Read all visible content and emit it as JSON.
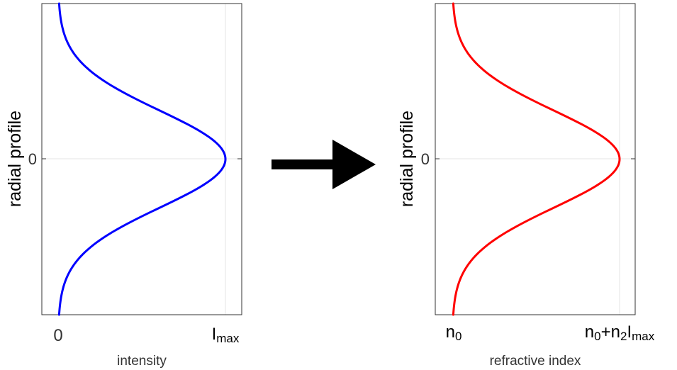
{
  "chart_data": [
    {
      "type": "line",
      "orientation": "profile-vertical",
      "title": "",
      "xlabel": "intensity",
      "ylabel": "radial profile",
      "x_ticks": [
        {
          "label": "0",
          "value": 0
        },
        {
          "label_base": "I",
          "label_sub": "max",
          "value": 1
        }
      ],
      "y_ticks": [
        {
          "label": "0",
          "value": 0
        }
      ],
      "xlim": [
        -0.1,
        1.1
      ],
      "ylim": [
        -3.2,
        3.2
      ],
      "grid": true,
      "series": [
        {
          "color": "#0000ff",
          "profile": "gaussian",
          "baseline": 0,
          "peak": 1,
          "sigma": 1,
          "y": [
            -3.2,
            -3.0,
            -2.8,
            -2.6,
            -2.4,
            -2.2,
            -2.0,
            -1.8,
            -1.6,
            -1.4,
            -1.2,
            -1.0,
            -0.8,
            -0.6,
            -0.4,
            -0.2,
            0.0,
            0.2,
            0.4,
            0.6,
            0.8,
            1.0,
            1.2,
            1.4,
            1.6,
            1.8,
            2.0,
            2.2,
            2.4,
            2.6,
            2.8,
            3.0,
            3.2
          ],
          "x": [
            0.006,
            0.011,
            0.02,
            0.034,
            0.056,
            0.089,
            0.135,
            0.198,
            0.278,
            0.375,
            0.487,
            0.607,
            0.726,
            0.835,
            0.923,
            0.98,
            1.0,
            0.98,
            0.923,
            0.835,
            0.726,
            0.607,
            0.487,
            0.375,
            0.278,
            0.198,
            0.135,
            0.089,
            0.056,
            0.034,
            0.02,
            0.011,
            0.006
          ]
        }
      ]
    },
    {
      "type": "line",
      "orientation": "profile-vertical",
      "title": "",
      "xlabel": "refractive index",
      "ylabel": "radial profile",
      "x_ticks": [
        {
          "label_base": "n",
          "label_sub": "0",
          "value": 0
        },
        {
          "label_parts": [
            {
              "text": "n",
              "sub": false
            },
            {
              "text": "0",
              "sub": true
            },
            {
              "text": "+n",
              "sub": false
            },
            {
              "text": "2",
              "sub": true
            },
            {
              "text": "I",
              "sub": false
            },
            {
              "text": "max",
              "sub": true
            }
          ],
          "value": 1
        }
      ],
      "y_ticks": [
        {
          "label": "0",
          "value": 0
        }
      ],
      "xlim": [
        -0.1,
        1.1
      ],
      "ylim": [
        -3.2,
        3.2
      ],
      "grid": true,
      "series": [
        {
          "color": "#ff0000",
          "profile": "gaussian",
          "baseline": 0,
          "peak": 1,
          "sigma": 1,
          "y": [
            -3.2,
            -3.0,
            -2.8,
            -2.6,
            -2.4,
            -2.2,
            -2.0,
            -1.8,
            -1.6,
            -1.4,
            -1.2,
            -1.0,
            -0.8,
            -0.6,
            -0.4,
            -0.2,
            0.0,
            0.2,
            0.4,
            0.6,
            0.8,
            1.0,
            1.2,
            1.4,
            1.6,
            1.8,
            2.0,
            2.2,
            2.4,
            2.6,
            2.8,
            3.0,
            3.2
          ],
          "x": [
            0.006,
            0.011,
            0.02,
            0.034,
            0.056,
            0.089,
            0.135,
            0.198,
            0.278,
            0.375,
            0.487,
            0.607,
            0.726,
            0.835,
            0.923,
            0.98,
            1.0,
            0.98,
            0.923,
            0.835,
            0.726,
            0.607,
            0.487,
            0.375,
            0.278,
            0.198,
            0.135,
            0.089,
            0.056,
            0.034,
            0.02,
            0.011,
            0.006
          ]
        }
      ]
    }
  ],
  "connector": {
    "icon": "right-arrow-icon",
    "color": "#000000"
  }
}
